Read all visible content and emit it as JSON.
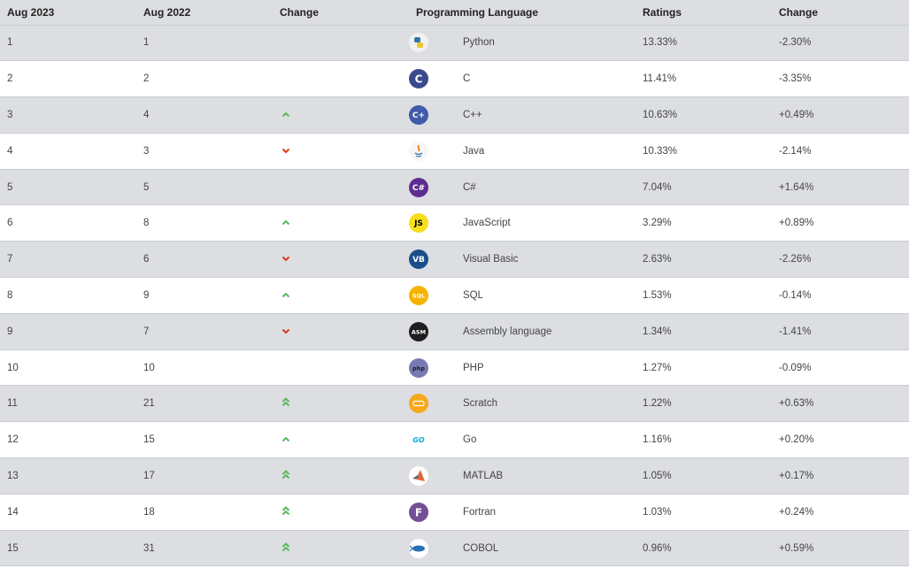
{
  "header": {
    "col_aug2023": "Aug 2023",
    "col_aug2022": "Aug 2022",
    "col_change": "Change",
    "col_language": "Programming Language",
    "col_ratings": "Ratings",
    "col_change2": "Change"
  },
  "colors": {
    "up": "#5cb85c",
    "down": "#d9381e",
    "stripe": "#dcdee1"
  },
  "rows": [
    {
      "rank2023": "1",
      "rank2022": "1",
      "trend": "none",
      "icon": "python-logo-icon",
      "logo_text": "",
      "logo_bg": "#e8e8e8",
      "logo_fg": "#3572A5",
      "language": "Python",
      "rating": "13.33%",
      "change": "-2.30%"
    },
    {
      "rank2023": "2",
      "rank2022": "2",
      "trend": "none",
      "icon": "c-logo-icon",
      "logo_text": "C",
      "logo_bg": "#3a4a8c",
      "logo_fg": "#ffffff",
      "language": "C",
      "rating": "11.41%",
      "change": "-3.35%"
    },
    {
      "rank2023": "3",
      "rank2022": "4",
      "trend": "up",
      "icon": "cpp-logo-icon",
      "logo_text": "C+",
      "logo_bg": "#3f5ba9",
      "logo_fg": "#ffffff",
      "language": "C++",
      "rating": "10.63%",
      "change": "+0.49%"
    },
    {
      "rank2023": "4",
      "rank2022": "3",
      "trend": "down",
      "icon": "java-logo-icon",
      "logo_text": "",
      "logo_bg": "#f4f4f4",
      "logo_fg": "#e76f00",
      "language": "Java",
      "rating": "10.33%",
      "change": "-2.14%"
    },
    {
      "rank2023": "5",
      "rank2022": "5",
      "trend": "none",
      "icon": "csharp-logo-icon",
      "logo_text": "C#",
      "logo_bg": "#5c2d91",
      "logo_fg": "#ffffff",
      "language": "C#",
      "rating": "7.04%",
      "change": "+1.64%"
    },
    {
      "rank2023": "6",
      "rank2022": "8",
      "trend": "up",
      "icon": "javascript-logo-icon",
      "logo_text": "JS",
      "logo_bg": "#f7df1e",
      "logo_fg": "#000000",
      "language": "JavaScript",
      "rating": "3.29%",
      "change": "+0.89%"
    },
    {
      "rank2023": "7",
      "rank2022": "6",
      "trend": "down",
      "icon": "visual-basic-logo-icon",
      "logo_text": "VB",
      "logo_bg": "#1b4e8c",
      "logo_fg": "#ffffff",
      "language": "Visual Basic",
      "rating": "2.63%",
      "change": "-2.26%"
    },
    {
      "rank2023": "8",
      "rank2022": "9",
      "trend": "up",
      "icon": "sql-logo-icon",
      "logo_text": "SQL",
      "logo_bg": "#f5b400",
      "logo_fg": "#ffffff",
      "language": "SQL",
      "rating": "1.53%",
      "change": "-0.14%"
    },
    {
      "rank2023": "9",
      "rank2022": "7",
      "trend": "down",
      "icon": "assembly-logo-icon",
      "logo_text": "ASM",
      "logo_bg": "#1e1e1e",
      "logo_fg": "#ffffff",
      "language": "Assembly language",
      "rating": "1.34%",
      "change": "-1.41%"
    },
    {
      "rank2023": "10",
      "rank2022": "10",
      "trend": "none",
      "icon": "php-logo-icon",
      "logo_text": "php",
      "logo_bg": "#777bb3",
      "logo_fg": "#1a1a1a",
      "language": "PHP",
      "rating": "1.27%",
      "change": "-0.09%"
    },
    {
      "rank2023": "11",
      "rank2022": "21",
      "trend": "double-up",
      "icon": "scratch-logo-icon",
      "logo_text": "",
      "logo_bg": "#f7a81b",
      "logo_fg": "#ffffff",
      "language": "Scratch",
      "rating": "1.22%",
      "change": "+0.63%"
    },
    {
      "rank2023": "12",
      "rank2022": "15",
      "trend": "up",
      "icon": "go-logo-icon",
      "logo_text": "GO",
      "logo_bg": "#ffffff",
      "logo_fg": "#00add8",
      "language": "Go",
      "rating": "1.16%",
      "change": "+0.20%"
    },
    {
      "rank2023": "13",
      "rank2022": "17",
      "trend": "double-up",
      "icon": "matlab-logo-icon",
      "logo_text": "",
      "logo_bg": "#ffffff",
      "logo_fg": "#e16737",
      "language": "MATLAB",
      "rating": "1.05%",
      "change": "+0.17%"
    },
    {
      "rank2023": "14",
      "rank2022": "18",
      "trend": "double-up",
      "icon": "fortran-logo-icon",
      "logo_text": "F",
      "logo_bg": "#734f96",
      "logo_fg": "#ffffff",
      "language": "Fortran",
      "rating": "1.03%",
      "change": "+0.24%"
    },
    {
      "rank2023": "15",
      "rank2022": "31",
      "trend": "double-up",
      "icon": "cobol-logo-icon",
      "logo_text": "",
      "logo_bg": "#ffffff",
      "logo_fg": "#2a6fb8",
      "language": "COBOL",
      "rating": "0.96%",
      "change": "+0.59%"
    }
  ]
}
